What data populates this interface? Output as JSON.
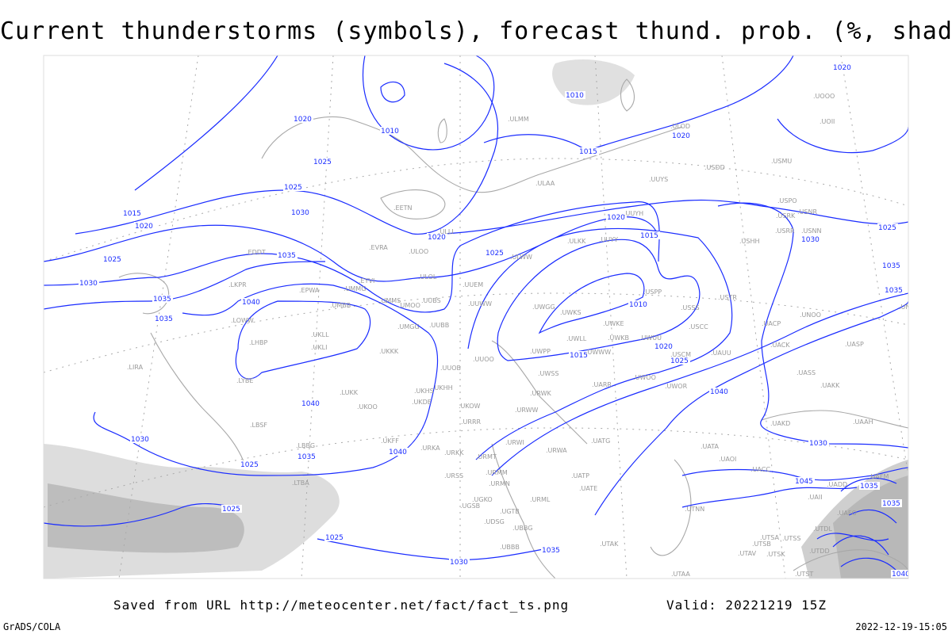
{
  "title": "Current thunderstorms (symbols), forecast thund. prob. (%, shaded)",
  "footer": {
    "saved_from": "Saved from URL http://meteocenter.net/fact/fact_ts.png",
    "valid": "Valid: 20221219 15Z",
    "software": "GrADS/COLA",
    "timestamp": "2022-12-19-15:05"
  },
  "colors": {
    "isobar": "#1a2cff",
    "coastline": "#a8a8a8",
    "station": "#999999",
    "probability_shading": "#d0d0d0"
  },
  "isobar_labels": [
    "1020",
    "1010",
    "1010",
    "1015",
    "1020",
    "1020",
    "1025",
    "1025",
    "1015",
    "1020",
    "1030",
    "1020",
    "1025",
    "1035",
    "1025",
    "1030",
    "1035",
    "1035",
    "1040",
    "1040",
    "1020",
    "1015",
    "1010",
    "1015",
    "1020",
    "1025",
    "1025",
    "1030",
    "1035",
    "1040",
    "1035",
    "1030",
    "1030",
    "1025",
    "1025",
    "1025",
    "1030",
    "1035",
    "1040",
    "1035",
    "1045",
    "1035",
    "1035",
    "1040"
  ],
  "stations": [
    "ULMM",
    "ULOD",
    "USDD",
    "USMU",
    "UUYS",
    "ULAA",
    "UOOO",
    "UOII",
    "UUYH",
    "ULKK",
    "UUYY",
    "USPO",
    "USRK",
    "USNR",
    "USRR",
    "USNN",
    "USHH",
    "ULWW",
    "ULOL",
    "UUEM",
    "USPP",
    "USTR",
    "UUWW",
    "UWGG",
    "USSS",
    "UWKS",
    "UWKE",
    "USCC",
    "UWLL",
    "UWKB",
    "UWUU",
    "UWPP",
    "UWWW",
    "UUOO",
    "USCM",
    "UAUU",
    "UWSS",
    "UWOO",
    "UARR",
    "UWOR",
    "URWK",
    "ULOO",
    "EVRA",
    "EYVI",
    "UMMG",
    "UMMS",
    "UMOO",
    "UUBS",
    "UMBB",
    "UMGG",
    "UUBB",
    "UKLL",
    "UKLI",
    "UKKK",
    "UUOB",
    "UKHH",
    "UKHS",
    "UKDE",
    "UKOO",
    "EDDT",
    "EPWA",
    "LKPR",
    "LOWW",
    "LHBP",
    "LIRA",
    "LYBE",
    "LBSF",
    "LBBG",
    "LTBA",
    "LUKK",
    "UKFF",
    "URKA",
    "URKK",
    "URRR",
    "UKOW",
    "URMT",
    "URSS",
    "URMM",
    "URMN",
    "UGKO",
    "UGSB",
    "UGTB",
    "UDSG",
    "UBBG",
    "UBBB",
    "UATG",
    "URWI",
    "URWA",
    "UATP",
    "UATE",
    "URML",
    "UTAK",
    "UATA",
    "UAOI",
    "UACC",
    "UTNN",
    "UTSA",
    "UTSS",
    "UTSB",
    "UTAV",
    "UTSK",
    "UTST",
    "UTAA",
    "UAKD",
    "UAAH",
    "UASP",
    "UACK",
    "UACP",
    "UNOO",
    "UAKK",
    "UASS",
    "UNBB",
    "UAII",
    "UADD",
    "UAFM",
    "UAFO",
    "UTDL",
    "UTDD",
    "URWW",
    "ULLI",
    "EETN"
  ]
}
